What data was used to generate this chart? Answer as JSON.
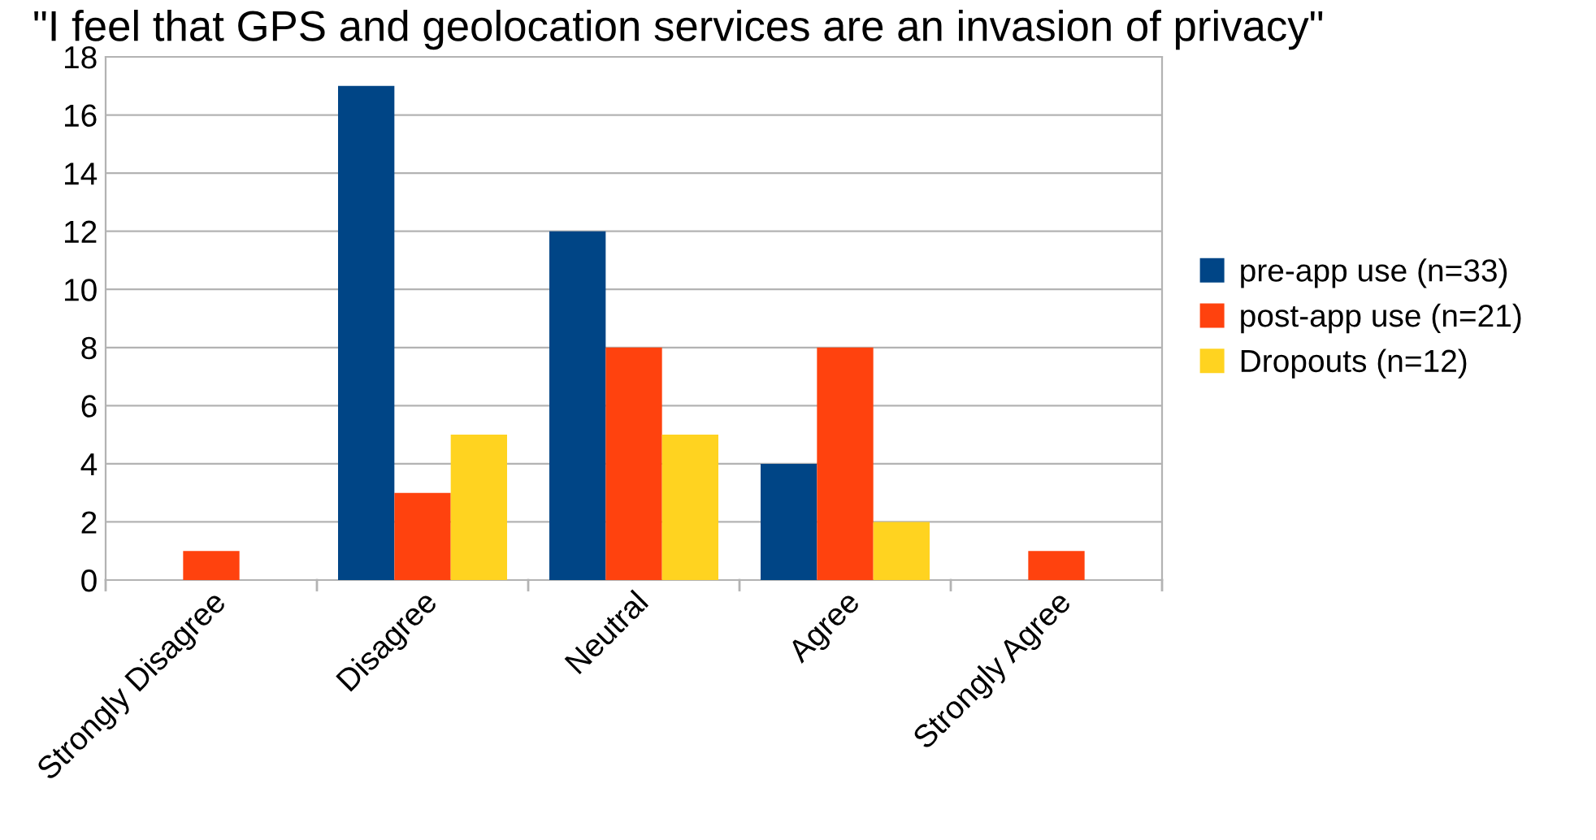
{
  "chart_data": {
    "type": "bar",
    "title": "\"I feel that GPS and geolocation services are an invasion of privacy\"",
    "categories": [
      "Strongly Disagree",
      "Disagree",
      "Neutral",
      "Agree",
      "Strongly Agree"
    ],
    "series": [
      {
        "name": "pre-app use (n=33)",
        "color": "#004586",
        "values": [
          0,
          17,
          12,
          4,
          0
        ]
      },
      {
        "name": "post-app use (n=21)",
        "color": "#ff420e",
        "values": [
          1,
          3,
          8,
          8,
          1
        ]
      },
      {
        "name": "Dropouts (n=12)",
        "color": "#ffd320",
        "values": [
          0,
          5,
          5,
          2,
          0
        ]
      }
    ],
    "ylim": [
      0,
      18
    ],
    "yticks": [
      0,
      2,
      4,
      6,
      8,
      10,
      12,
      14,
      16,
      18
    ],
    "grid": "y",
    "legend": "right"
  }
}
